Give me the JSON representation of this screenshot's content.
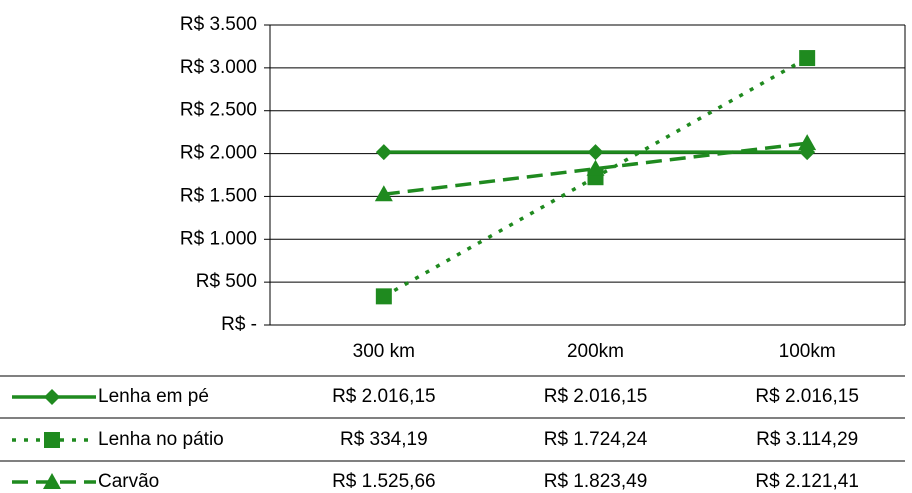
{
  "chart_data": {
    "type": "line",
    "categories": [
      "300 km",
      "200km",
      "100km"
    ],
    "series": [
      {
        "name": "Lenha em pé",
        "color": "#1f8a1f",
        "dash": "solid",
        "marker": "diamond",
        "values": [
          2016.15,
          2016.15,
          2016.15
        ],
        "value_labels": [
          "R$ 2.016,15",
          "R$ 2.016,15",
          "R$ 2.016,15"
        ]
      },
      {
        "name": "Lenha no pátio",
        "color": "#1f8a1f",
        "dash": "dotted",
        "marker": "square",
        "values": [
          334.19,
          1724.24,
          3114.29
        ],
        "value_labels": [
          "R$ 334,19",
          "R$ 1.724,24",
          "R$ 3.114,29"
        ]
      },
      {
        "name": "Carvão",
        "color": "#1f8a1f",
        "dash": "dashed",
        "marker": "triangle",
        "values": [
          1525.66,
          1823.49,
          2121.41
        ],
        "value_labels": [
          "R$ 1.525,66",
          "R$ 1.823,49",
          "R$ 2.121,41"
        ]
      }
    ],
    "ylim": [
      0,
      3500
    ],
    "yticks": [
      {
        "value": 0,
        "label": "R$ -"
      },
      {
        "value": 500,
        "label": "R$ 500"
      },
      {
        "value": 1000,
        "label": "R$ 1.000"
      },
      {
        "value": 1500,
        "label": "R$ 1.500"
      },
      {
        "value": 2000,
        "label": "R$ 2.000"
      },
      {
        "value": 2500,
        "label": "R$ 2.500"
      },
      {
        "value": 3000,
        "label": "R$ 3.000"
      },
      {
        "value": 3500,
        "label": "R$ 3.500"
      }
    ],
    "grid": true
  }
}
